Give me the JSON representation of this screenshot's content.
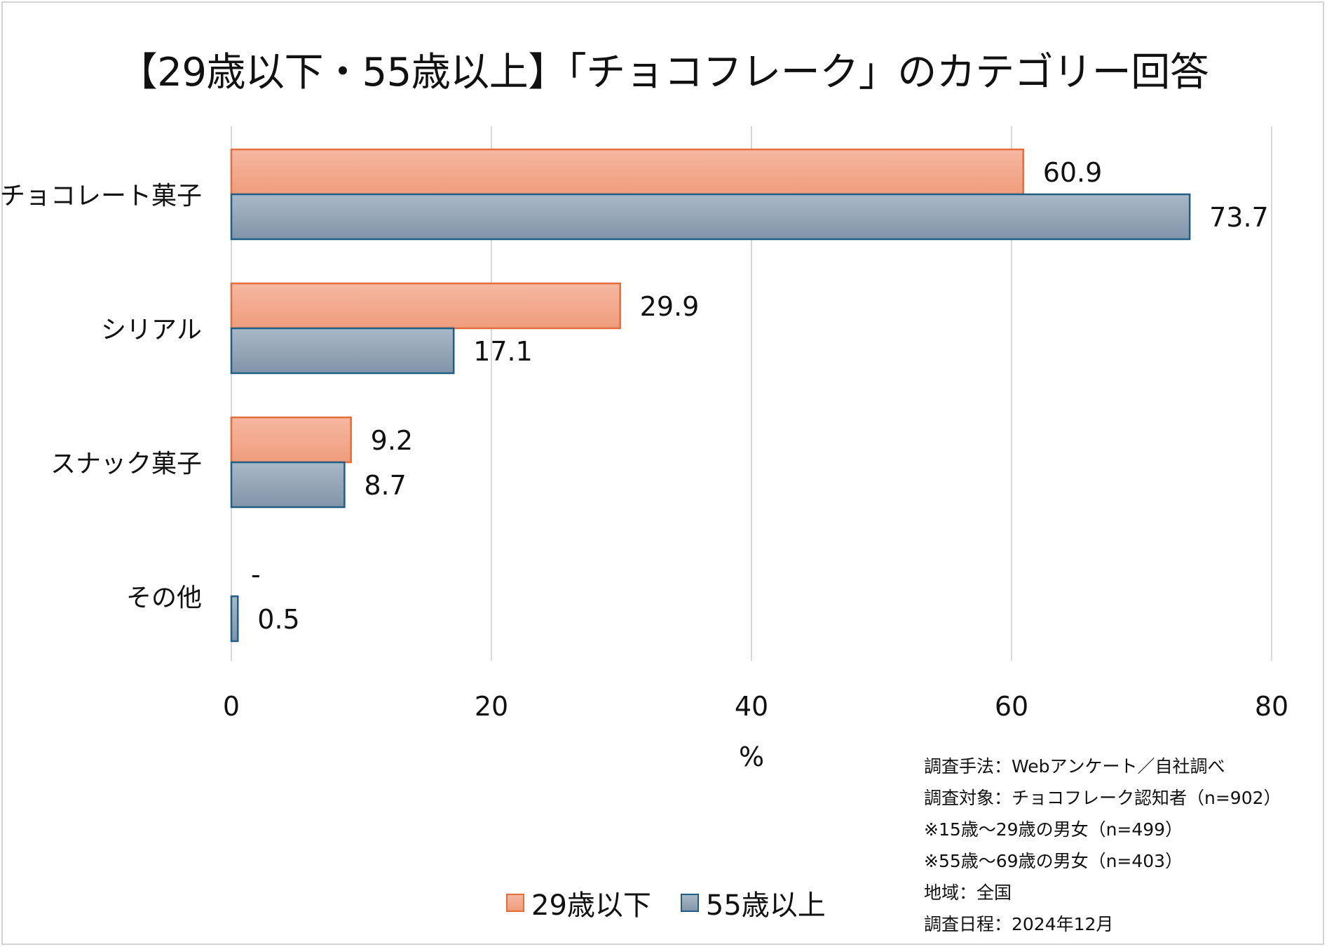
{
  "title": "【29歳以下・55歳以上】「チョコフレーク」のカテゴリー回答",
  "colors": {
    "series1_fill_top": "#f6b7a0",
    "series1_fill_bottom": "#ef9d7c",
    "series1_stroke": "#e46d3a",
    "series2_fill_top": "#a9b8c7",
    "series2_fill_bottom": "#8294a8",
    "series2_stroke": "#1f5f86",
    "grid": "#d9d9d9"
  },
  "chart_data": {
    "type": "bar",
    "orientation": "horizontal",
    "title": "【29歳以下・55歳以上】「チョコフレーク」のカテゴリー回答",
    "categories": [
      "チョコレート菓子",
      "シリアル",
      "スナック菓子",
      "その他"
    ],
    "series": [
      {
        "name": "29歳以下",
        "values": [
          60.9,
          29.9,
          9.2,
          null
        ],
        "labels": [
          "60.9",
          "29.9",
          "9.2",
          "-"
        ]
      },
      {
        "name": "55歳以上",
        "values": [
          73.7,
          17.1,
          8.7,
          0.5
        ],
        "labels": [
          "73.7",
          "17.1",
          "8.7",
          "0.5"
        ]
      }
    ],
    "xlabel": "%",
    "xlim": [
      0,
      80
    ],
    "xticks": [
      "0",
      "20",
      "40",
      "60",
      "80"
    ],
    "grid": true,
    "legend": "bottom"
  },
  "notes": [
    "調査手法：Webアンケート／自社調べ",
    "調査対象：チョコフレーク認知者（n=902）",
    "※15歳～29歳の男女（n=499）",
    "※55歳～69歳の男女（n=403）",
    "地域：全国",
    "調査日程：2024年12月"
  ],
  "legend": {
    "series1": "29歳以下",
    "series2": "55歳以上"
  }
}
